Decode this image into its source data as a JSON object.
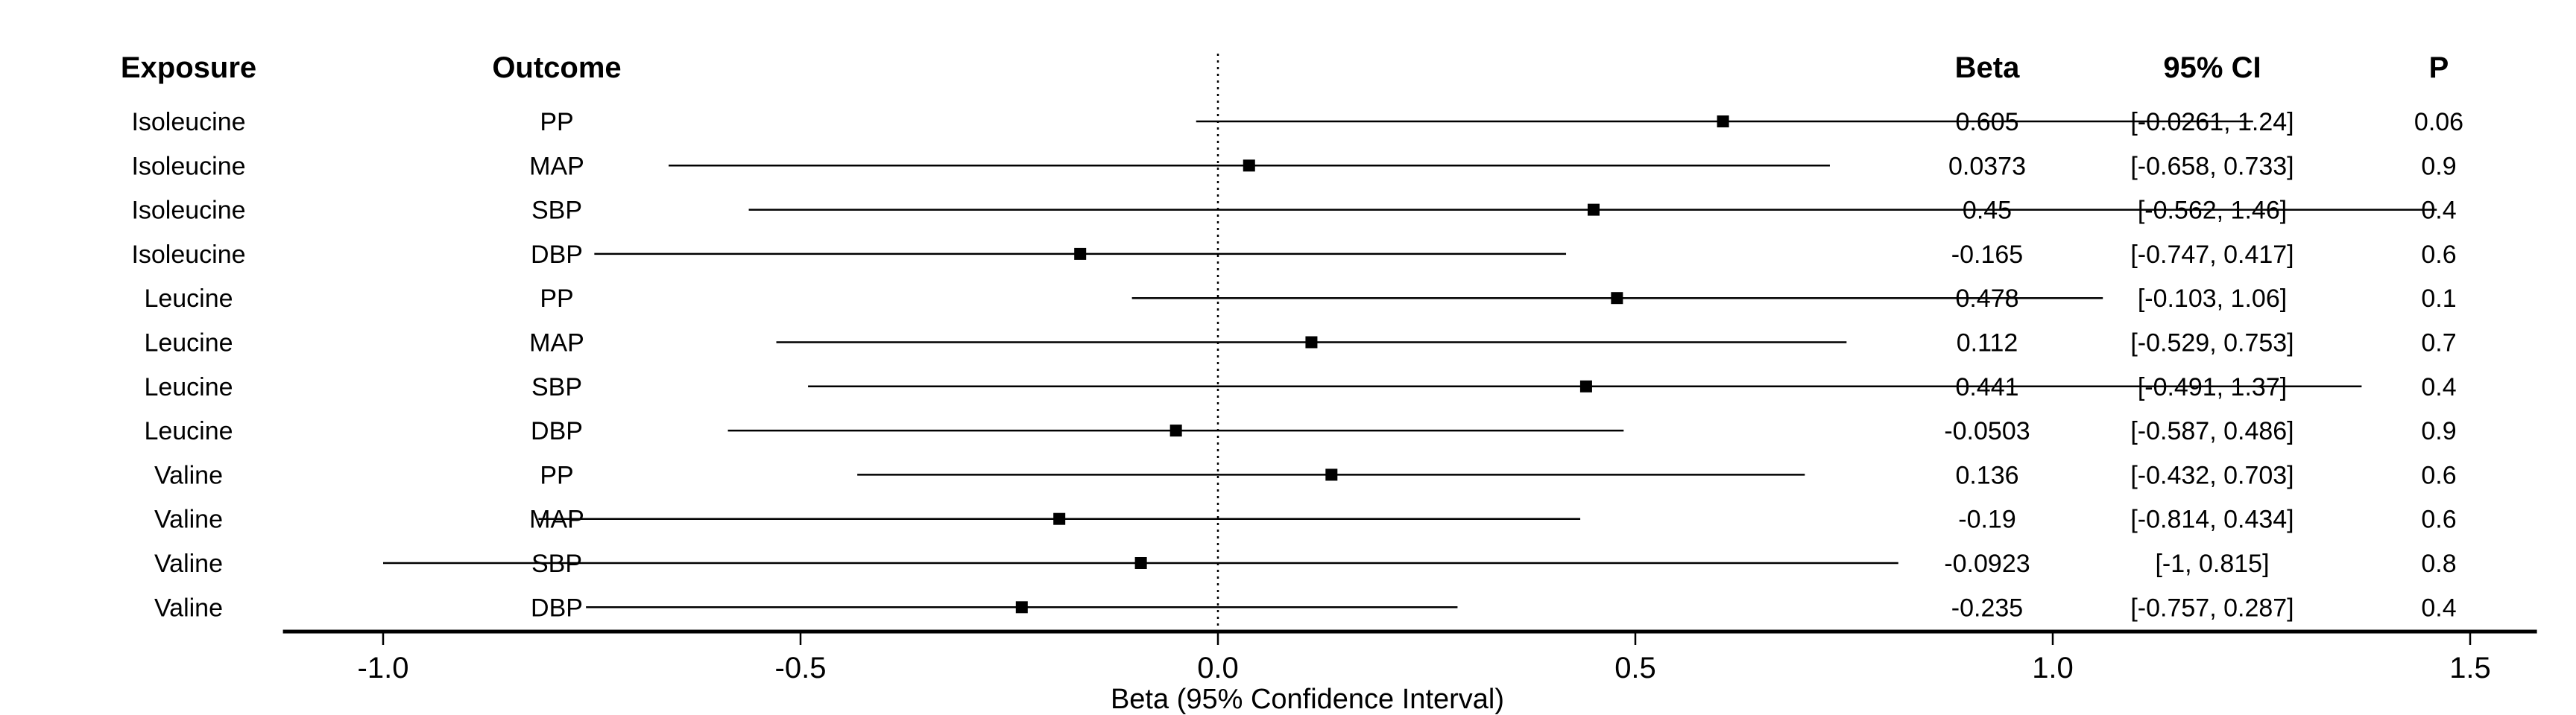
{
  "chart_data": {
    "type": "forest",
    "headers": {
      "exposure": "Exposure",
      "outcome": "Outcome",
      "beta": "Beta",
      "ci": "95% CI",
      "p": "P"
    },
    "xlabel": "Beta (95% Confidence Interval)",
    "xlim": [
      -1.12,
      1.58
    ],
    "xticks": [
      "-1.0",
      "-0.5",
      "0.0",
      "0.5",
      "1.0",
      "1.5"
    ],
    "reference_line": 0,
    "rows": [
      {
        "exposure": "Isoleucine",
        "outcome": "PP",
        "beta": 0.605,
        "lower": -0.0261,
        "upper": 1.24,
        "beta_text": "0.605",
        "ci_text": "[-0.0261, 1.24]",
        "p_text": "0.06"
      },
      {
        "exposure": "Isoleucine",
        "outcome": "MAP",
        "beta": 0.0373,
        "lower": -0.658,
        "upper": 0.733,
        "beta_text": "0.0373",
        "ci_text": "[-0.658, 0.733]",
        "p_text": "0.9"
      },
      {
        "exposure": "Isoleucine",
        "outcome": "SBP",
        "beta": 0.45,
        "lower": -0.562,
        "upper": 1.46,
        "beta_text": "0.45",
        "ci_text": "[-0.562, 1.46]",
        "p_text": "0.4"
      },
      {
        "exposure": "Isoleucine",
        "outcome": "DBP",
        "beta": -0.165,
        "lower": -0.747,
        "upper": 0.417,
        "beta_text": "-0.165",
        "ci_text": "[-0.747, 0.417]",
        "p_text": "0.6"
      },
      {
        "exposure": "Leucine",
        "outcome": "PP",
        "beta": 0.478,
        "lower": -0.103,
        "upper": 1.06,
        "beta_text": "0.478",
        "ci_text": "[-0.103, 1.06]",
        "p_text": "0.1"
      },
      {
        "exposure": "Leucine",
        "outcome": "MAP",
        "beta": 0.112,
        "lower": -0.529,
        "upper": 0.753,
        "beta_text": "0.112",
        "ci_text": "[-0.529, 0.753]",
        "p_text": "0.7"
      },
      {
        "exposure": "Leucine",
        "outcome": "SBP",
        "beta": 0.441,
        "lower": -0.491,
        "upper": 1.37,
        "beta_text": "0.441",
        "ci_text": "[-0.491, 1.37]",
        "p_text": "0.4"
      },
      {
        "exposure": "Leucine",
        "outcome": "DBP",
        "beta": -0.0503,
        "lower": -0.587,
        "upper": 0.486,
        "beta_text": "-0.0503",
        "ci_text": "[-0.587, 0.486]",
        "p_text": "0.9"
      },
      {
        "exposure": "Valine",
        "outcome": "PP",
        "beta": 0.136,
        "lower": -0.432,
        "upper": 0.703,
        "beta_text": "0.136",
        "ci_text": "[-0.432, 0.703]",
        "p_text": "0.6"
      },
      {
        "exposure": "Valine",
        "outcome": "MAP",
        "beta": -0.19,
        "lower": -0.814,
        "upper": 0.434,
        "beta_text": "-0.19",
        "ci_text": "[-0.814, 0.434]",
        "p_text": "0.6"
      },
      {
        "exposure": "Valine",
        "outcome": "SBP",
        "beta": -0.0923,
        "lower": -1,
        "upper": 0.815,
        "beta_text": "-0.0923",
        "ci_text": "[-1, 0.815]",
        "p_text": "0.8"
      },
      {
        "exposure": "Valine",
        "outcome": "DBP",
        "beta": -0.235,
        "lower": -0.757,
        "upper": 0.287,
        "beta_text": "-0.235",
        "ci_text": "[-0.757, 0.287]",
        "p_text": "0.4"
      }
    ]
  }
}
